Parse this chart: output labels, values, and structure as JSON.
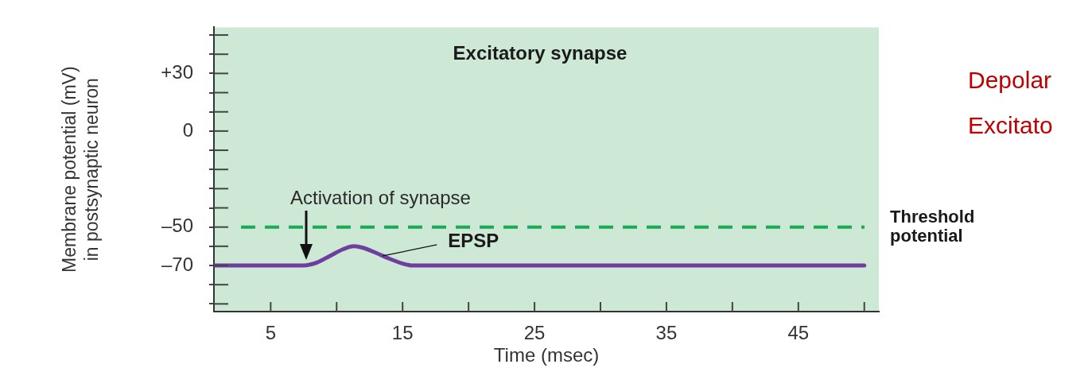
{
  "chart_data": {
    "type": "line",
    "title": "Excitatory synapse",
    "xlabel": "Time (msec)",
    "ylabel": "Membrane potential (mV)\nin postsynaptic neuron",
    "x": [
      0.7,
      7.5,
      8.5,
      9.5,
      10.5,
      11.3,
      12,
      13,
      14,
      15,
      15.8,
      50
    ],
    "series": [
      {
        "color": "#6f3fa0",
        "values": [
          -70,
          -70,
          -68.5,
          -65,
          -61.5,
          -60,
          -60.8,
          -63.5,
          -66.5,
          -69,
          -70,
          -70
        ]
      }
    ],
    "xlim": [
      0.7,
      51.1
    ],
    "xticks": [
      5,
      {
        "value": 10,
        "label": null
      },
      15,
      {
        "value": 20,
        "label": null
      },
      25,
      {
        "value": 30,
        "label": null
      },
      35,
      {
        "value": 40,
        "label": null
      },
      45,
      {
        "value": 50,
        "label": null
      }
    ],
    "ylim": [
      -94,
      54
    ],
    "yticks": [
      {
        "value": -90,
        "label": null
      },
      {
        "value": -80,
        "label": null
      },
      {
        "value": -70,
        "label": "–70"
      },
      {
        "value": -60,
        "label": null
      },
      {
        "value": -50,
        "label": "–50"
      },
      {
        "value": -40,
        "label": null
      },
      {
        "value": -30,
        "label": null
      },
      {
        "value": -20,
        "label": null
      },
      {
        "value": -10,
        "label": null
      },
      0,
      {
        "value": 10,
        "label": null
      },
      {
        "value": 20,
        "label": null
      },
      {
        "value": 30,
        "label": "+30"
      },
      {
        "value": 40,
        "label": null
      },
      {
        "value": 50,
        "label": null
      }
    ],
    "ref_lines": [
      {
        "axis": "y",
        "value": -50,
        "label": "Threshold potential",
        "color": "#1aaa55",
        "line_style": "dashed"
      }
    ],
    "annotations": [
      {
        "text": "Activation of synapse",
        "x": 7.7,
        "y": -67
      },
      {
        "text": "EPSP",
        "x": 13.5,
        "y": -65
      },
      "Depolar",
      "Excitato"
    ],
    "marker": "none",
    "line_style": "solid",
    "grid": false,
    "legend": false
  }
}
